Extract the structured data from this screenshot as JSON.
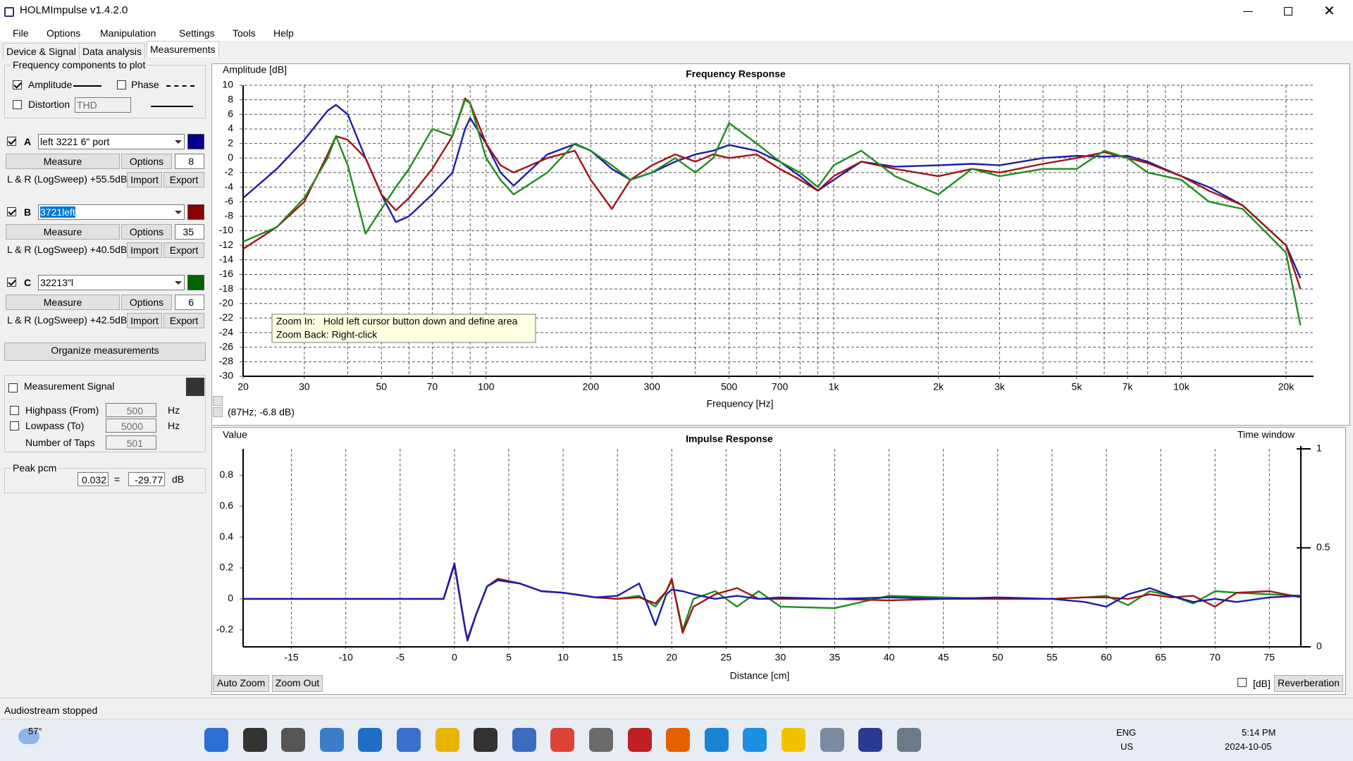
{
  "window": {
    "title": "HOLMImpulse  v1.4.2.0"
  },
  "menu": [
    "File",
    "Options",
    "Manipulation",
    "Settings",
    "Tools",
    "Help"
  ],
  "tabs": [
    "Device & Signal",
    "Data analysis",
    "Measurements"
  ],
  "left_panel": {
    "plot_group": {
      "title": "Frequency components to plot",
      "amplitude": "Amplitude",
      "phase": "Phase",
      "distortion": "Distortion",
      "distortion_type": "THD"
    },
    "measurements": [
      {
        "label": "A",
        "name": "left 3221 6\" port",
        "measure": "Measure",
        "options": "Options",
        "count": 8,
        "info": "L & R (LogSweep) +55.5dB",
        "import": "Import",
        "export": "Export",
        "color": "#00008b"
      },
      {
        "label": "B",
        "name": "3721left",
        "measure": "Measure",
        "options": "Options",
        "count": 35,
        "info": "L & R (LogSweep) +40.5dB",
        "import": "Import",
        "export": "Export",
        "color": "#8b0000"
      },
      {
        "label": "C",
        "name": "32213\"l",
        "measure": "Measure",
        "options": "Options",
        "count": 6,
        "info": "L & R (LogSweep) +42.5dB",
        "import": "Import",
        "export": "Export",
        "color": "#006400"
      }
    ],
    "organize": "Organize measurements",
    "signal": {
      "title": "Measurement Signal",
      "highpass": "Highpass (From)",
      "highpass_value": 500,
      "lowpass": "Lowpass (To)",
      "lowpass_value": 5000,
      "unit": "Hz",
      "taps": "Number of Taps",
      "taps_value": 501
    },
    "peak": {
      "title": "Peak pcm",
      "pcm": 0.032,
      "equals": "=",
      "db": -29.77,
      "unit": "dB"
    }
  },
  "chart_data": [
    {
      "type": "line",
      "title": "Frequency Response",
      "ylabel": "Amplitude [dB]",
      "xlabel": "Frequency [Hz]",
      "log_x": true,
      "grid": "both",
      "xlim": [
        20,
        24000
      ],
      "ylim": [
        -30,
        10
      ],
      "xticks": [
        20,
        30,
        50,
        70,
        100,
        200,
        300,
        500,
        700,
        {
          "value": 1000,
          "label": "1k"
        },
        {
          "value": 2000,
          "label": "2k"
        },
        {
          "value": 3000,
          "label": "3k"
        },
        {
          "value": 5000,
          "label": "5k"
        },
        {
          "value": 7000,
          "label": "7k"
        },
        {
          "value": 10000,
          "label": "10k"
        },
        {
          "value": 20000,
          "label": "20k"
        }
      ],
      "xgrid": [
        40,
        60,
        80,
        90,
        400,
        600,
        800,
        900,
        4000,
        6000,
        8000,
        9000
      ],
      "yticks": [
        -30,
        -28,
        -26,
        -24,
        -22,
        -20,
        -18,
        -16,
        -14,
        -12,
        -10,
        -8,
        -6,
        -4,
        -2,
        0,
        2,
        4,
        6,
        8,
        10
      ],
      "x": [
        20,
        25,
        30,
        35,
        37,
        40,
        45,
        50,
        55,
        60,
        70,
        80,
        87,
        90,
        100,
        110,
        120,
        150,
        180,
        200,
        230,
        260,
        300,
        350,
        400,
        450,
        500,
        600,
        700,
        800,
        900,
        1000,
        1200,
        1500,
        2000,
        2500,
        3000,
        4000,
        5000,
        6000,
        7000,
        8000,
        10000,
        12000,
        15000,
        20000,
        22000
      ],
      "series": [
        {
          "color": "#1c1ca8",
          "values": [
            -5.5,
            -1.5,
            2.5,
            6.5,
            7.3,
            6,
            0,
            -5,
            -8.8,
            -8,
            -5,
            -2,
            4,
            5.5,
            2,
            -2,
            -3.8,
            0.5,
            1.9,
            1,
            -1.5,
            -3,
            -2,
            -0.5,
            0.5,
            1,
            1.8,
            1,
            -0.5,
            -2.5,
            -4.5,
            -3,
            -0.5,
            -1.2,
            -1,
            -0.8,
            -1,
            0,
            0.3,
            0.2,
            0.3,
            -0.5,
            -2.5,
            -4,
            -6.5,
            -12,
            -16.5
          ]
        },
        {
          "color": "#a01414",
          "values": [
            -12.5,
            -9.5,
            -6,
            0.5,
            3,
            2.5,
            0,
            -5,
            -7.2,
            -5.5,
            -1.5,
            3,
            8.2,
            7.5,
            2,
            -1,
            -2,
            0,
            1,
            -3,
            -7,
            -3,
            -1,
            0.5,
            -0.5,
            0.5,
            0,
            0.5,
            -1.5,
            -3,
            -4.5,
            -2.5,
            -0.5,
            -1.5,
            -2.5,
            -1.5,
            -2,
            -0.8,
            0,
            0.8,
            0,
            -0.7,
            -2.5,
            -4.5,
            -6.5,
            -12,
            -18
          ]
        },
        {
          "color": "#1e8c1e",
          "values": [
            -11.5,
            -9.5,
            -5.5,
            0,
            3,
            -1,
            -10.4,
            -7,
            -4,
            -1.5,
            4,
            3,
            8,
            7.5,
            0,
            -3,
            -5,
            -2,
            2,
            1,
            -1,
            -3,
            -2,
            0,
            -2,
            0,
            4.8,
            2,
            -0.5,
            -2,
            -4,
            -1,
            1,
            -2.5,
            -5,
            -1.5,
            -2.5,
            -1.5,
            -1.5,
            1,
            0,
            -2,
            -3,
            -6,
            -7,
            -13,
            -23
          ]
        }
      ],
      "annotations": {
        "tooltip": [
          "Zoom In:   Hold left cursor button down and define area",
          "Zoom Back: Right-click"
        ],
        "cursor_readout": "(87Hz; -6.8 dB)"
      }
    },
    {
      "type": "line",
      "title": "Impulse Response",
      "ylabel": "Value",
      "y2label": "Time window",
      "xlabel": "Distance [cm]",
      "log_x": false,
      "grid": "x",
      "xlim": [
        -19.45,
        77.9
      ],
      "ylim": [
        -0.31,
        0.97
      ],
      "y2lim": [
        0,
        1
      ],
      "xticks": [
        -15,
        -10,
        -5,
        0,
        5,
        10,
        15,
        20,
        25,
        30,
        35,
        40,
        45,
        50,
        55,
        60,
        65,
        70,
        75
      ],
      "yticks": [
        -0.2,
        0,
        0.2,
        0.4,
        0.6,
        0.8
      ],
      "y2ticks": [
        0,
        0.5,
        1
      ],
      "x": [
        -19.4,
        -10,
        -5,
        -2,
        -1,
        0,
        1,
        1.2,
        2,
        3,
        4,
        6,
        8,
        10,
        13,
        15,
        17,
        18.5,
        19.5,
        20,
        21,
        22,
        24,
        26,
        28,
        30,
        35,
        40,
        45,
        50,
        55,
        58,
        60,
        62,
        64,
        66,
        68,
        70,
        72,
        75,
        77.9
      ],
      "series": [
        {
          "color": "#1e8c1e",
          "values": [
            0,
            0,
            0,
            0,
            0,
            0.22,
            -0.2,
            -0.26,
            -0.1,
            0.08,
            0.13,
            0.1,
            0.05,
            0.04,
            0.01,
            0,
            0.02,
            -0.05,
            0.05,
            0.12,
            -0.2,
            0,
            0.05,
            -0.05,
            0.05,
            -0.05,
            -0.06,
            0.02,
            0.01,
            0,
            0,
            0.01,
            0.02,
            -0.04,
            0.05,
            0.02,
            -0.03,
            0.05,
            0.04,
            0.03,
            0.02
          ]
        },
        {
          "color": "#a01414",
          "values": [
            0,
            0,
            0,
            0,
            0,
            0.22,
            -0.2,
            -0.26,
            -0.1,
            0.08,
            0.13,
            0.1,
            0.05,
            0.04,
            0.01,
            0,
            0.01,
            -0.03,
            0.05,
            0.13,
            -0.22,
            -0.05,
            0.03,
            0.07,
            0,
            0,
            0,
            -0.01,
            0,
            0,
            0,
            0.01,
            0.01,
            0,
            0.03,
            0.01,
            0.02,
            -0.05,
            0.04,
            0.05,
            0.01
          ]
        },
        {
          "color": "#1c1ca8",
          "values": [
            0,
            0,
            0,
            0,
            0,
            0.23,
            -0.2,
            -0.27,
            -0.1,
            0.08,
            0.12,
            0.1,
            0.05,
            0.04,
            0.01,
            0.02,
            0.1,
            -0.17,
            0.03,
            0.06,
            0.05,
            0.03,
            0,
            0.02,
            0,
            0.01,
            0,
            0.01,
            0,
            0.01,
            0,
            -0.02,
            -0.05,
            0.03,
            0.07,
            0.02,
            -0.02,
            0,
            -0.02,
            0.01,
            0.02
          ]
        }
      ]
    }
  ],
  "chart_controls": {
    "auto_zoom": "Auto Zoom",
    "zoom_out": "Zoom Out",
    "db": "[dB]",
    "reverberation": "Reverberation"
  },
  "status": "Audiostream stopped",
  "taskbar": {
    "weather": "57°",
    "language": "ENG",
    "region": "US",
    "time": "5:14 PM",
    "date": "2024-10-05"
  }
}
